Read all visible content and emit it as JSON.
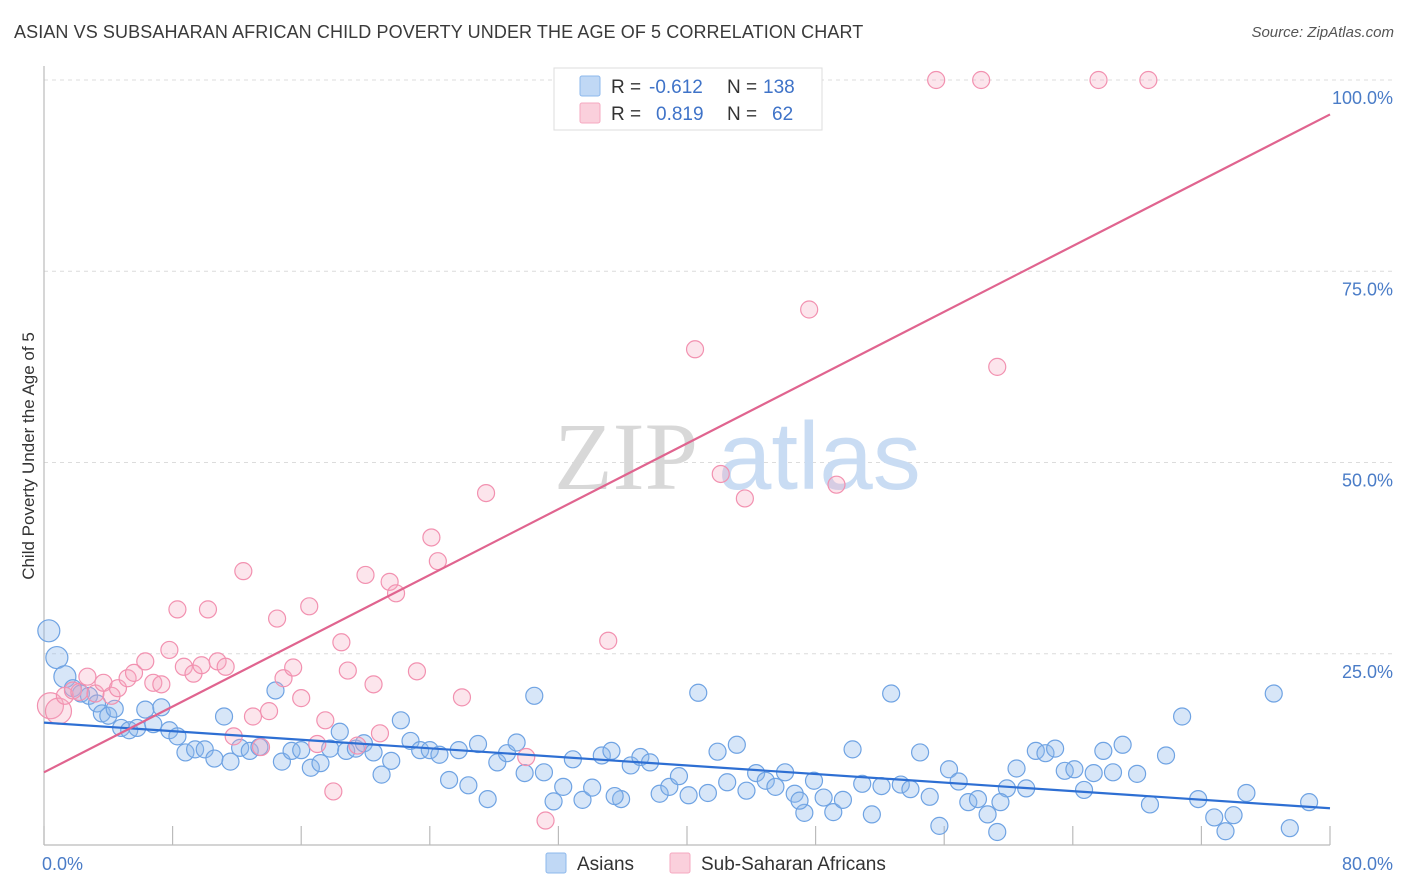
{
  "header": {
    "title": "ASIAN VS SUBSAHARAN AFRICAN CHILD POVERTY UNDER THE AGE OF 5 CORRELATION CHART",
    "source": "Source: ZipAtlas.com"
  },
  "watermark": {
    "zip": "ZIP",
    "atlas": "atlas"
  },
  "legend_top": [
    {
      "r_label": "R =",
      "r_value": "-0.612",
      "n_label": "N =",
      "n_value": "138",
      "color": "#8db8ec"
    },
    {
      "r_label": "R =",
      "r_value": "0.819",
      "n_label": "N =",
      "n_value": "62",
      "color": "#f5a9c0"
    }
  ],
  "legend_bottom": [
    {
      "label": "Asians",
      "color": "#8db8ec"
    },
    {
      "label": "Sub-Saharan Africans",
      "color": "#f5a9c0"
    }
  ],
  "chart_data": {
    "type": "scatter",
    "title": "ASIAN VS SUBSAHARAN AFRICAN CHILD POVERTY UNDER THE AGE OF 5 CORRELATION CHART",
    "xlabel": "",
    "ylabel": "Child Poverty Under the Age of 5",
    "xlim": [
      0,
      80
    ],
    "ylim": [
      0,
      100
    ],
    "x_tick_labels": [
      "0.0%",
      "80.0%"
    ],
    "y_tick_labels": [
      "25.0%",
      "50.0%",
      "75.0%",
      "100.0%"
    ],
    "y_ticks": [
      25,
      50,
      75,
      100
    ],
    "grid": true,
    "legend_placement": "top-center and bottom",
    "series": [
      {
        "name": "Asians",
        "color": "#6fa3e3",
        "r": -0.612,
        "n": 138,
        "trend": [
          [
            0,
            16.0
          ],
          [
            80,
            4.8
          ]
        ],
        "points": [
          [
            0.3,
            28.0
          ],
          [
            0.8,
            24.5
          ],
          [
            1.3,
            22.0
          ],
          [
            1.8,
            20.5
          ],
          [
            2.3,
            19.8
          ],
          [
            2.8,
            19.5
          ],
          [
            3.3,
            18.5
          ],
          [
            3.6,
            17.2
          ],
          [
            4.0,
            16.9
          ],
          [
            4.4,
            17.8
          ],
          [
            4.8,
            15.3
          ],
          [
            5.3,
            15.0
          ],
          [
            5.8,
            15.3
          ],
          [
            6.3,
            17.7
          ],
          [
            6.8,
            15.8
          ],
          [
            7.3,
            18.0
          ],
          [
            7.8,
            15.0
          ],
          [
            8.3,
            14.2
          ],
          [
            8.8,
            12.1
          ],
          [
            9.4,
            12.5
          ],
          [
            10.0,
            12.5
          ],
          [
            10.6,
            11.3
          ],
          [
            11.2,
            16.8
          ],
          [
            11.6,
            10.9
          ],
          [
            12.2,
            12.7
          ],
          [
            12.8,
            12.3
          ],
          [
            13.4,
            12.8
          ],
          [
            14.4,
            20.2
          ],
          [
            14.8,
            10.9
          ],
          [
            15.4,
            12.3
          ],
          [
            16.0,
            12.4
          ],
          [
            16.6,
            10.1
          ],
          [
            17.2,
            10.7
          ],
          [
            17.8,
            12.6
          ],
          [
            18.4,
            14.8
          ],
          [
            18.8,
            12.3
          ],
          [
            19.4,
            12.6
          ],
          [
            19.9,
            13.3
          ],
          [
            20.5,
            12.1
          ],
          [
            21.0,
            9.2
          ],
          [
            21.6,
            11.0
          ],
          [
            22.2,
            16.3
          ],
          [
            22.8,
            13.6
          ],
          [
            23.4,
            12.4
          ],
          [
            24.0,
            12.4
          ],
          [
            24.6,
            11.8
          ],
          [
            25.2,
            8.5
          ],
          [
            25.8,
            12.4
          ],
          [
            26.4,
            7.8
          ],
          [
            27.0,
            13.2
          ],
          [
            27.6,
            6.0
          ],
          [
            28.2,
            10.8
          ],
          [
            28.8,
            12.0
          ],
          [
            29.4,
            13.4
          ],
          [
            29.9,
            9.4
          ],
          [
            30.5,
            19.5
          ],
          [
            31.1,
            9.5
          ],
          [
            31.7,
            5.7
          ],
          [
            32.3,
            7.6
          ],
          [
            32.9,
            11.2
          ],
          [
            33.5,
            5.9
          ],
          [
            34.1,
            7.5
          ],
          [
            34.7,
            11.7
          ],
          [
            35.3,
            12.3
          ],
          [
            35.9,
            6.0
          ],
          [
            36.5,
            10.4
          ],
          [
            37.1,
            11.5
          ],
          [
            37.7,
            10.8
          ],
          [
            38.3,
            6.7
          ],
          [
            38.9,
            7.6
          ],
          [
            39.5,
            9.0
          ],
          [
            40.1,
            6.5
          ],
          [
            40.7,
            19.9
          ],
          [
            41.3,
            6.8
          ],
          [
            41.9,
            12.2
          ],
          [
            42.5,
            8.2
          ],
          [
            43.1,
            13.1
          ],
          [
            43.7,
            7.1
          ],
          [
            44.3,
            9.4
          ],
          [
            44.9,
            8.4
          ],
          [
            45.5,
            7.6
          ],
          [
            46.1,
            9.5
          ],
          [
            46.7,
            6.7
          ],
          [
            47.3,
            4.2
          ],
          [
            47.9,
            8.4
          ],
          [
            48.5,
            6.2
          ],
          [
            49.1,
            4.3
          ],
          [
            49.7,
            5.9
          ],
          [
            50.3,
            12.5
          ],
          [
            50.9,
            8.0
          ],
          [
            51.5,
            4.0
          ],
          [
            52.1,
            7.7
          ],
          [
            52.7,
            19.8
          ],
          [
            53.3,
            7.9
          ],
          [
            53.9,
            7.3
          ],
          [
            54.5,
            12.1
          ],
          [
            55.1,
            6.3
          ],
          [
            55.7,
            2.5
          ],
          [
            56.3,
            9.9
          ],
          [
            56.9,
            8.3
          ],
          [
            57.5,
            5.6
          ],
          [
            58.1,
            6.0
          ],
          [
            58.7,
            4.0
          ],
          [
            59.3,
            1.7
          ],
          [
            59.9,
            7.4
          ],
          [
            60.5,
            10.0
          ],
          [
            61.1,
            7.4
          ],
          [
            61.7,
            12.3
          ],
          [
            62.3,
            12.0
          ],
          [
            62.9,
            12.6
          ],
          [
            63.5,
            9.7
          ],
          [
            64.1,
            9.9
          ],
          [
            64.7,
            7.2
          ],
          [
            65.3,
            9.4
          ],
          [
            65.9,
            12.3
          ],
          [
            66.5,
            9.5
          ],
          [
            67.1,
            13.1
          ],
          [
            68.0,
            9.3
          ],
          [
            68.8,
            5.3
          ],
          [
            69.8,
            11.7
          ],
          [
            70.8,
            16.8
          ],
          [
            71.8,
            6.0
          ],
          [
            72.8,
            3.6
          ],
          [
            73.5,
            1.8
          ],
          [
            74.0,
            3.9
          ],
          [
            74.8,
            6.8
          ],
          [
            76.5,
            19.8
          ],
          [
            77.5,
            2.2
          ],
          [
            78.7,
            5.6
          ],
          [
            59.5,
            5.6
          ],
          [
            35.5,
            6.4
          ],
          [
            47.0,
            5.8
          ]
        ]
      },
      {
        "name": "Sub-Saharan Africans",
        "color": "#f291b0",
        "r": 0.819,
        "n": 62,
        "trend": [
          [
            0,
            9.5
          ],
          [
            80,
            95.5
          ]
        ],
        "points": [
          [
            0.4,
            18.2
          ],
          [
            0.9,
            17.5
          ],
          [
            1.3,
            19.5
          ],
          [
            1.8,
            20.2
          ],
          [
            2.2,
            20.0
          ],
          [
            2.7,
            22.0
          ],
          [
            3.2,
            19.8
          ],
          [
            3.7,
            21.2
          ],
          [
            4.2,
            19.5
          ],
          [
            4.6,
            20.5
          ],
          [
            5.2,
            21.8
          ],
          [
            5.6,
            22.5
          ],
          [
            6.3,
            24.0
          ],
          [
            6.8,
            21.2
          ],
          [
            7.3,
            21.0
          ],
          [
            7.8,
            25.5
          ],
          [
            8.3,
            30.8
          ],
          [
            8.7,
            23.3
          ],
          [
            9.3,
            22.4
          ],
          [
            9.8,
            23.5
          ],
          [
            10.2,
            30.8
          ],
          [
            10.8,
            24.0
          ],
          [
            11.3,
            23.3
          ],
          [
            11.8,
            14.2
          ],
          [
            12.4,
            35.8
          ],
          [
            13.0,
            16.8
          ],
          [
            13.5,
            12.8
          ],
          [
            14.0,
            17.5
          ],
          [
            14.5,
            29.6
          ],
          [
            14.9,
            21.8
          ],
          [
            15.5,
            23.2
          ],
          [
            16.0,
            19.2
          ],
          [
            16.5,
            31.2
          ],
          [
            17.0,
            13.2
          ],
          [
            17.5,
            16.3
          ],
          [
            18.0,
            7.0
          ],
          [
            18.5,
            26.5
          ],
          [
            18.9,
            22.8
          ],
          [
            19.5,
            13.0
          ],
          [
            20.0,
            35.3
          ],
          [
            20.5,
            21.0
          ],
          [
            20.9,
            14.6
          ],
          [
            21.5,
            34.4
          ],
          [
            21.9,
            32.9
          ],
          [
            23.2,
            22.7
          ],
          [
            24.1,
            40.2
          ],
          [
            24.5,
            37.1
          ],
          [
            26.0,
            19.3
          ],
          [
            27.5,
            46.0
          ],
          [
            30.0,
            11.5
          ],
          [
            31.2,
            3.2
          ],
          [
            35.1,
            26.7
          ],
          [
            40.5,
            64.8
          ],
          [
            42.1,
            48.5
          ],
          [
            43.6,
            45.3
          ],
          [
            47.6,
            70.0
          ],
          [
            49.3,
            47.1
          ],
          [
            55.5,
            100.0
          ],
          [
            58.3,
            100.0
          ],
          [
            59.3,
            62.5
          ],
          [
            65.6,
            100.0
          ],
          [
            68.7,
            100.0
          ]
        ]
      }
    ]
  }
}
